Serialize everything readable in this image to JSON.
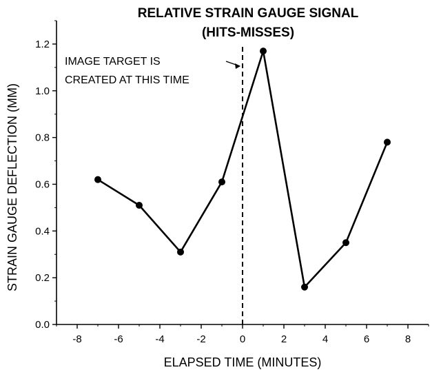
{
  "chart_data": {
    "type": "line",
    "title": "RELATIVE STRAIN GAUGE SIGNAL",
    "subtitle": "(HITS-MISSES)",
    "xlabel": "ELAPSED TIME (MINUTES)",
    "ylabel": "STRAIN GAUGE DEFLECTION (MM)",
    "xlim": [
      -9,
      9
    ],
    "ylim": [
      0,
      1.3
    ],
    "x_ticks": [
      -8,
      -6,
      -4,
      -2,
      0,
      2,
      4,
      6,
      8
    ],
    "y_ticks": [
      0.0,
      0.2,
      0.4,
      0.6,
      0.8,
      1.0,
      1.2
    ],
    "x_tick_labels": [
      "-8",
      "-6",
      "-4",
      "-2",
      "0",
      "2",
      "4",
      "6",
      "8"
    ],
    "y_tick_labels": [
      "0.0",
      "0.2",
      "0.4",
      "0.6",
      "0.8",
      "1.0",
      "1.2"
    ],
    "grid": false,
    "series": [
      {
        "x": [
          -7,
          -5,
          -3,
          -1,
          1,
          3,
          5,
          7
        ],
        "y": [
          0.62,
          0.51,
          0.31,
          0.61,
          1.17,
          0.16,
          0.35,
          0.78
        ]
      }
    ],
    "reference_line": {
      "x": 0,
      "style": "dashed"
    },
    "annotation": {
      "lines": [
        "IMAGE TARGET IS",
        "CREATED AT THIS TIME"
      ],
      "points_to_x": 0
    },
    "colors": {
      "line": "#000000",
      "marker": "#000000"
    }
  }
}
